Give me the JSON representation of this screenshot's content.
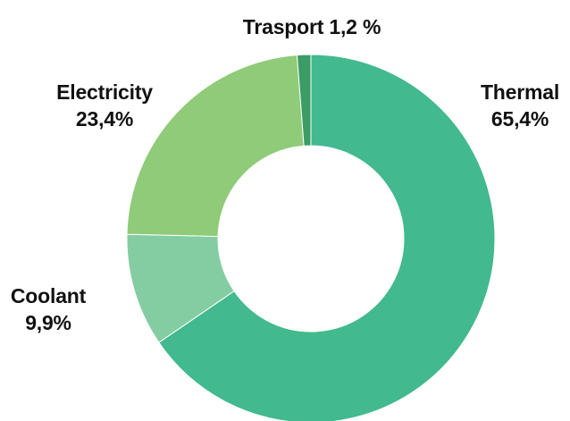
{
  "chart_data": {
    "type": "pie",
    "donut": true,
    "title": "",
    "slices": [
      {
        "name": "Thermal",
        "value": 65.4,
        "value_label": "65,4%",
        "color": "#42b98e"
      },
      {
        "name": "Coolant",
        "value": 9.9,
        "value_label": "9,9%",
        "color": "#84cda2"
      },
      {
        "name": "Electricity",
        "value": 23.4,
        "value_label": "23,4%",
        "color": "#8fcb78"
      },
      {
        "name": "Trasport",
        "value": 1.2,
        "value_label": "1,2 %",
        "color": "#3b9c66"
      }
    ],
    "start_angle_deg": 0,
    "direction": "clockwise",
    "legend": "none",
    "labels": {
      "thermal_name": "Thermal",
      "thermal_value": "65,4%",
      "electricity_name": "Electricity",
      "electricity_value": "23,4%",
      "coolant_name": "Coolant",
      "coolant_value": "9,9%",
      "transport_text": "Trasport 1,2 %"
    }
  }
}
